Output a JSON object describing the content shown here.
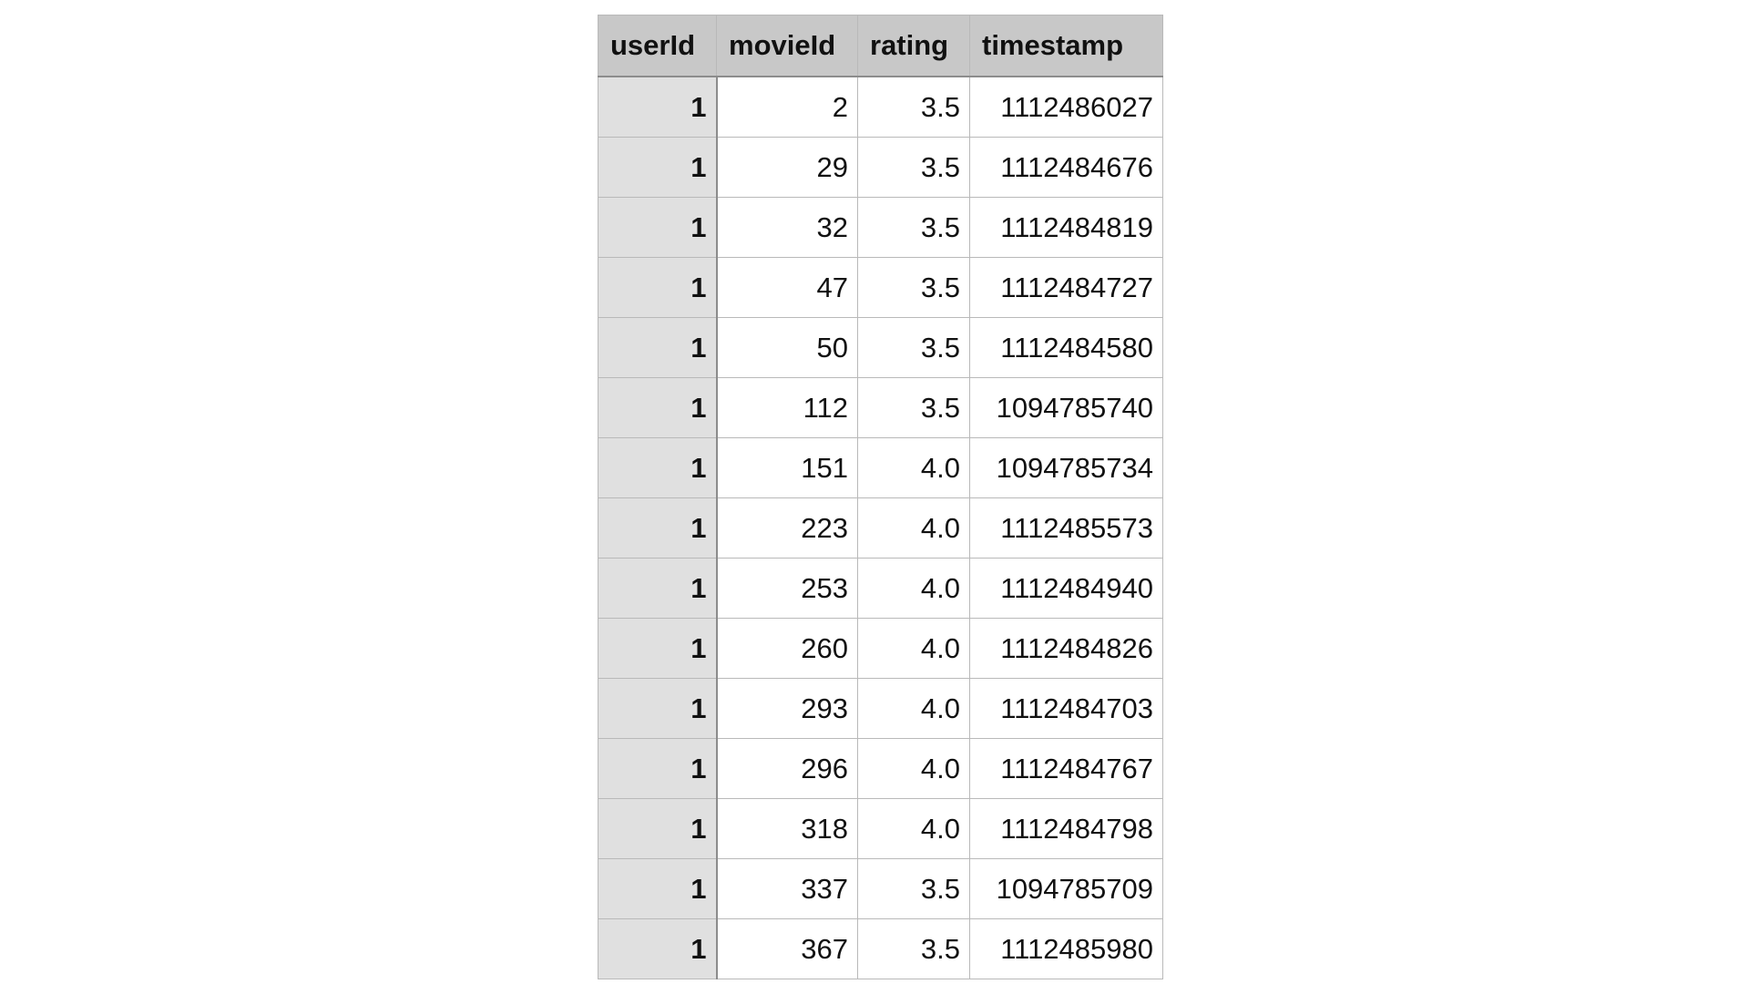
{
  "table": {
    "columns": [
      "userId",
      "movieId",
      "rating",
      "timestamp"
    ],
    "rows": [
      [
        "1",
        "2",
        "3.5",
        "1112486027"
      ],
      [
        "1",
        "29",
        "3.5",
        "1112484676"
      ],
      [
        "1",
        "32",
        "3.5",
        "1112484819"
      ],
      [
        "1",
        "47",
        "3.5",
        "1112484727"
      ],
      [
        "1",
        "50",
        "3.5",
        "1112484580"
      ],
      [
        "1",
        "112",
        "3.5",
        "1094785740"
      ],
      [
        "1",
        "151",
        "4.0",
        "1094785734"
      ],
      [
        "1",
        "223",
        "4.0",
        "1112485573"
      ],
      [
        "1",
        "253",
        "4.0",
        "1112484940"
      ],
      [
        "1",
        "260",
        "4.0",
        "1112484826"
      ],
      [
        "1",
        "293",
        "4.0",
        "1112484703"
      ],
      [
        "1",
        "296",
        "4.0",
        "1112484767"
      ],
      [
        "1",
        "318",
        "4.0",
        "1112484798"
      ],
      [
        "1",
        "337",
        "3.5",
        "1094785709"
      ],
      [
        "1",
        "367",
        "3.5",
        "1112485980"
      ]
    ]
  }
}
